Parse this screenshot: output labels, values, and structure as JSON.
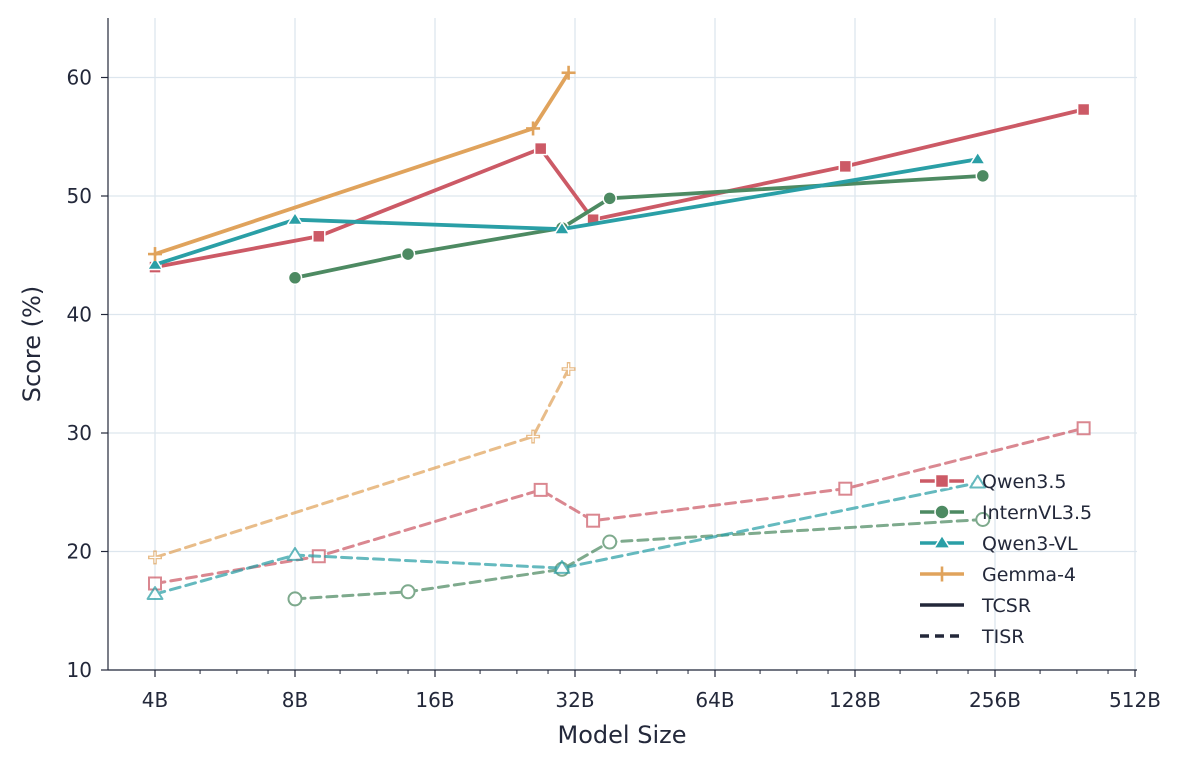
{
  "chart_data": {
    "type": "line",
    "xlabel": "Model Size",
    "ylabel": "Score (%)",
    "x_scale": "log2",
    "xlim": [
      "3B",
      "512B"
    ],
    "ylim": [
      10,
      65
    ],
    "x_tick_labels": [
      "4B",
      "8B",
      "16B",
      "32B",
      "64B",
      "128B",
      "256B",
      "512B"
    ],
    "y_tick_labels": [
      "10",
      "20",
      "30",
      "40",
      "50",
      "60"
    ],
    "grid": true,
    "legend_position": "lower right",
    "colors": {
      "Qwen3.5": "#cc5a66",
      "InternVL3.5": "#4d8a62",
      "Qwen3-VL": "#2a9fa6",
      "Gemma-4": "#e0a35c",
      "axis": "#23283a",
      "grid": "#dde6ee"
    },
    "series": [
      {
        "name": "Qwen3.5",
        "metric": "TCSR",
        "marker": "square",
        "filled": true,
        "x": [
          4,
          9,
          27,
          35,
          122,
          397
        ],
        "y": [
          44.0,
          46.6,
          54.0,
          48.0,
          52.5,
          57.3
        ]
      },
      {
        "name": "InternVL3.5",
        "metric": "TCSR",
        "marker": "circle",
        "filled": true,
        "x": [
          8,
          14,
          30,
          38,
          241
        ],
        "y": [
          43.1,
          45.1,
          47.3,
          49.8,
          51.7
        ]
      },
      {
        "name": "Qwen3-VL",
        "metric": "TCSR",
        "marker": "triangle",
        "filled": true,
        "x": [
          4,
          8,
          30,
          235
        ],
        "y": [
          44.2,
          48.0,
          47.2,
          53.1
        ]
      },
      {
        "name": "Gemma-4",
        "metric": "TCSR",
        "marker": "plus",
        "filled": true,
        "x": [
          4,
          26,
          31
        ],
        "y": [
          45.1,
          55.7,
          60.4
        ]
      },
      {
        "name": "Qwen3.5",
        "metric": "TISR",
        "marker": "square",
        "filled": false,
        "x": [
          4,
          9,
          27,
          35,
          122,
          397
        ],
        "y": [
          17.3,
          19.6,
          25.2,
          22.6,
          25.3,
          30.4
        ]
      },
      {
        "name": "InternVL3.5",
        "metric": "TISR",
        "marker": "circle",
        "filled": false,
        "x": [
          8,
          14,
          30,
          38,
          241
        ],
        "y": [
          16.0,
          16.6,
          18.5,
          20.8,
          22.7
        ]
      },
      {
        "name": "Qwen3-VL",
        "metric": "TISR",
        "marker": "triangle",
        "filled": false,
        "x": [
          4,
          8,
          30,
          235
        ],
        "y": [
          16.4,
          19.7,
          18.6,
          25.8
        ]
      },
      {
        "name": "Gemma-4",
        "metric": "TISR",
        "marker": "plus",
        "filled": false,
        "x": [
          4,
          26,
          31
        ],
        "y": [
          19.5,
          29.7,
          35.4
        ]
      }
    ],
    "legend": [
      {
        "label": "Qwen3.5",
        "marker": "square",
        "style": "solid"
      },
      {
        "label": "InternVL3.5",
        "marker": "circle",
        "style": "solid"
      },
      {
        "label": "Qwen3-VL",
        "marker": "triangle",
        "style": "solid"
      },
      {
        "label": "Gemma-4",
        "marker": "plus",
        "style": "solid"
      },
      {
        "label": "TCSR",
        "marker": "none",
        "style": "solid"
      },
      {
        "label": "TISR",
        "marker": "none",
        "style": "dashed"
      }
    ]
  }
}
